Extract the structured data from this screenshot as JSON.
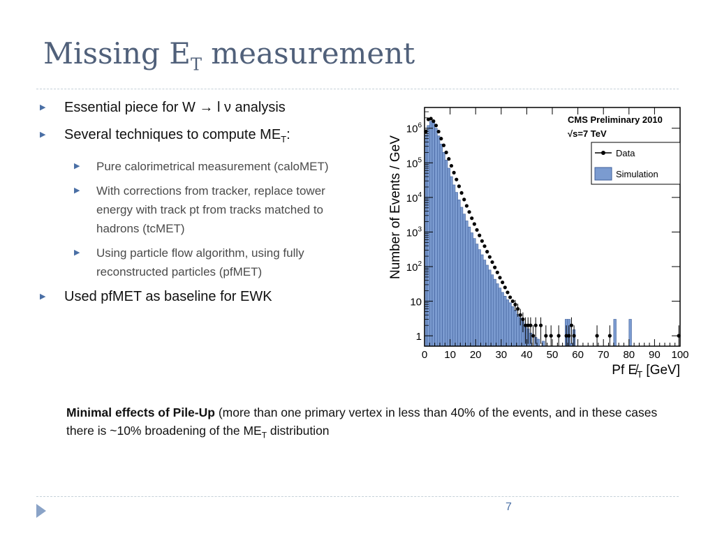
{
  "slide": {
    "title": "Missing E",
    "title_sub": "T",
    "title_rest": " measurement",
    "page_number": "7"
  },
  "bullets": [
    {
      "level": 1,
      "text": "Essential piece for W → l ν analysis"
    },
    {
      "level": 1,
      "text": "Several techniques to compute ME",
      "sub": "T",
      "suffix": ":"
    },
    {
      "level": 2,
      "text": "Pure calorimetrical measurement (caloMET)"
    },
    {
      "level": 2,
      "text": "With corrections from tracker, replace tower energy with track pt from tracks matched to hadrons (tcMET)"
    },
    {
      "level": 2,
      "text": "Using particle flow algorithm, using fully reconstructed particles (pfMET)"
    },
    {
      "level": 1,
      "text": "Used pfMET as baseline for EWK"
    }
  ],
  "note": {
    "bold": "Minimal effects of Pile-Up",
    "text": " (more than one primary vertex in less than 40% of the events, and in these cases there is ~10% broadening of the ME",
    "sub": "T",
    "suffix": " distribution"
  },
  "chart_data": {
    "type": "bar",
    "title": "CMS Preliminary 2010",
    "subtitle": "√s=7 TeV",
    "xlabel": "Pf E̸",
    "xlabel_sub": "T",
    "xlabel_unit": " [GeV]",
    "ylabel": "Number of Events / GeV",
    "xlim": [
      0,
      100
    ],
    "ylim_log10": [
      -0.3,
      6.6
    ],
    "y_scale": "log",
    "x_ticks": [
      "0",
      "10",
      "20",
      "30",
      "40",
      "50",
      "60",
      "70",
      "80",
      "90",
      "100"
    ],
    "y_ticks": [
      {
        "v": 1,
        "label": "1"
      },
      {
        "v": 10,
        "label": "10"
      },
      {
        "v": 100,
        "label": "10",
        "sup": "2"
      },
      {
        "v": 1000,
        "label": "10",
        "sup": "3"
      },
      {
        "v": 10000,
        "label": "10",
        "sup": "4"
      },
      {
        "v": 100000,
        "label": "10",
        "sup": "5"
      },
      {
        "v": 1000000,
        "label": "10",
        "sup": "6"
      }
    ],
    "legend": {
      "position": "top-right",
      "items": [
        {
          "name": "Data",
          "style": "marker-line"
        },
        {
          "name": "Simulation",
          "style": "fill"
        }
      ]
    },
    "colors": {
      "simulation": "#7b9bd0",
      "simulation_edge": "#3f5f9a",
      "data": "#000000"
    },
    "bin_width": 1,
    "simulation": [
      [
        0,
        650000
      ],
      [
        1,
        1200000
      ],
      [
        2,
        1600000
      ],
      [
        3,
        1500000
      ],
      [
        4,
        1000000
      ],
      [
        5,
        600000
      ],
      [
        6,
        350000
      ],
      [
        7,
        200000
      ],
      [
        8,
        120000
      ],
      [
        9,
        70000
      ],
      [
        10,
        40000
      ],
      [
        11,
        23000
      ],
      [
        12,
        14000
      ],
      [
        13,
        8500
      ],
      [
        14,
        5200
      ],
      [
        15,
        3300
      ],
      [
        16,
        2100
      ],
      [
        17,
        1400
      ],
      [
        18,
        950
      ],
      [
        19,
        650
      ],
      [
        20,
        450
      ],
      [
        21,
        310
      ],
      [
        22,
        220
      ],
      [
        23,
        155
      ],
      [
        24,
        110
      ],
      [
        25,
        80
      ],
      [
        26,
        58
      ],
      [
        27,
        43
      ],
      [
        28,
        32
      ],
      [
        29,
        24
      ],
      [
        30,
        18
      ],
      [
        31,
        14
      ],
      [
        32,
        11
      ],
      [
        33,
        9
      ],
      [
        34,
        7
      ],
      [
        35,
        5.5
      ],
      [
        36,
        4.2
      ],
      [
        37,
        3.3
      ],
      [
        38,
        2.6
      ],
      [
        39,
        2
      ],
      [
        40,
        1.6
      ],
      [
        41,
        1.2
      ],
      [
        43,
        0.9
      ],
      [
        44,
        0.8
      ],
      [
        46,
        0.7
      ],
      [
        55,
        3
      ],
      [
        56,
        3
      ],
      [
        57,
        0.6
      ],
      [
        58,
        1.5
      ],
      [
        74,
        3
      ],
      [
        80,
        3
      ]
    ],
    "data": [
      [
        0.5,
        800000
      ],
      [
        1.5,
        1800000
      ],
      [
        2.5,
        1900000
      ],
      [
        3.5,
        1600000
      ],
      [
        4.5,
        1200000
      ],
      [
        5.5,
        800000
      ],
      [
        6.5,
        500000
      ],
      [
        7.5,
        320000
      ],
      [
        8.5,
        200000
      ],
      [
        9.5,
        130000
      ],
      [
        10.5,
        82000
      ],
      [
        11.5,
        52000
      ],
      [
        12.5,
        33000
      ],
      [
        13.5,
        21000
      ],
      [
        14.5,
        13500
      ],
      [
        15.5,
        8700
      ],
      [
        16.5,
        5700
      ],
      [
        17.5,
        3800
      ],
      [
        18.5,
        2500
      ],
      [
        19.5,
        1700
      ],
      [
        20.5,
        1150
      ],
      [
        21.5,
        800
      ],
      [
        22.5,
        550
      ],
      [
        23.5,
        390
      ],
      [
        24.5,
        270
      ],
      [
        25.5,
        190
      ],
      [
        26.5,
        135
      ],
      [
        27.5,
        95
      ],
      [
        28.5,
        68
      ],
      [
        29.5,
        48
      ],
      [
        30.5,
        35
      ],
      [
        31.5,
        25
      ],
      [
        32.5,
        18
      ],
      [
        33.5,
        13
      ],
      [
        34.5,
        10
      ],
      [
        35.5,
        8
      ],
      [
        36.5,
        6
      ],
      [
        37.5,
        4
      ],
      [
        38.5,
        3
      ],
      [
        39.5,
        2
      ],
      [
        40.5,
        2
      ],
      [
        41.5,
        2
      ],
      [
        42.5,
        1
      ],
      [
        43.5,
        2
      ],
      [
        45.5,
        2
      ],
      [
        47.5,
        1
      ],
      [
        49.5,
        1
      ],
      [
        52.5,
        1
      ],
      [
        55.5,
        1
      ],
      [
        56.5,
        1
      ],
      [
        57.5,
        2
      ],
      [
        58.5,
        1
      ],
      [
        67.5,
        1
      ],
      [
        72.5,
        1
      ],
      [
        99.5,
        1
      ]
    ]
  }
}
